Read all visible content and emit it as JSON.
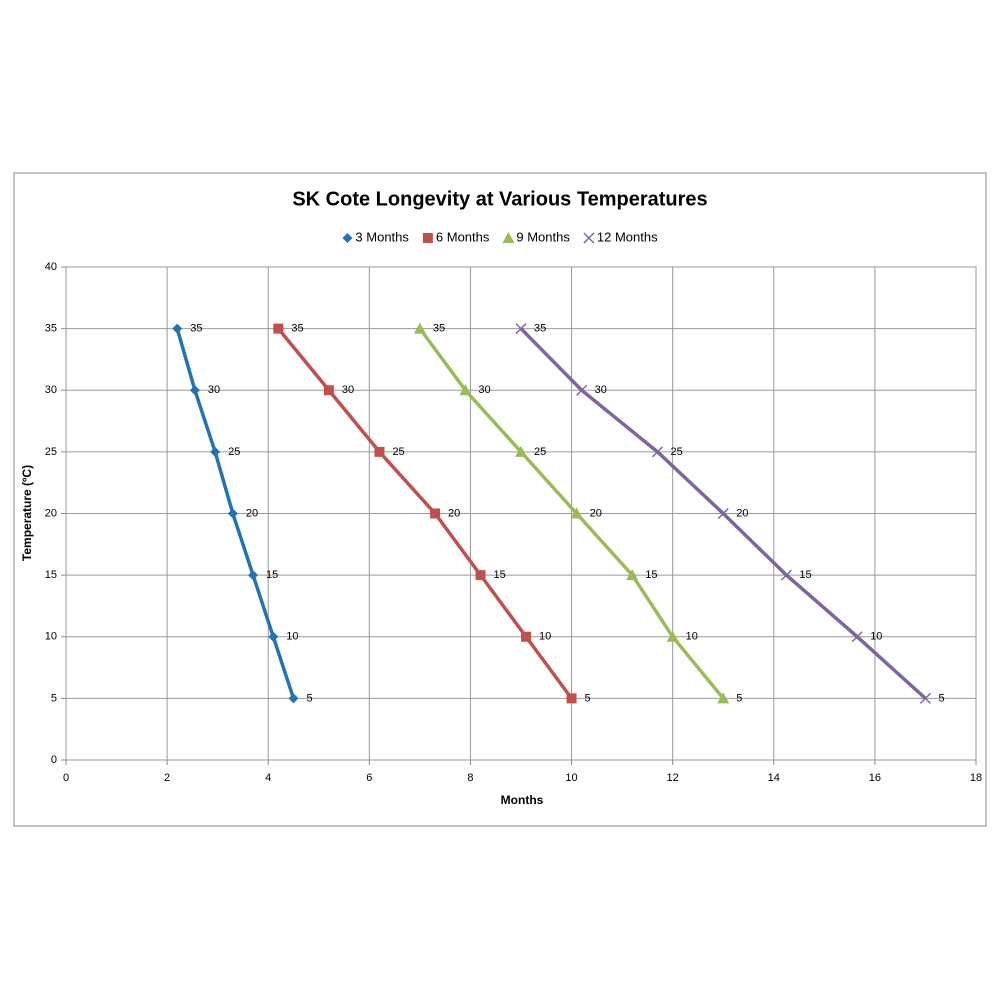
{
  "chart_data": {
    "type": "scatter",
    "title": "SK Cote Longevity at Various Temperatures",
    "x_label": "Months",
    "y_label": "Temperature (ºC)",
    "xlim": [
      0,
      18
    ],
    "xticks": [
      0,
      2,
      4,
      6,
      8,
      10,
      12,
      14,
      16,
      18
    ],
    "ylim": [
      0,
      40
    ],
    "yticks": [
      0,
      5,
      10,
      15,
      20,
      25,
      30,
      35,
      40
    ],
    "grid": true,
    "legend": "top",
    "series": [
      {
        "name": "3 Months",
        "color": "#2273b5",
        "marker": "diamond",
        "x": [
          2.2,
          2.55,
          2.95,
          3.3,
          3.7,
          4.1,
          4.5
        ],
        "values": [
          35,
          30,
          25,
          20,
          15,
          10,
          5
        ]
      },
      {
        "name": "6 Months",
        "color": "#c0504d",
        "marker": "square",
        "x": [
          4.2,
          5.2,
          6.2,
          7.3,
          8.2,
          9.1,
          10
        ],
        "values": [
          35,
          30,
          25,
          20,
          15,
          10,
          5
        ]
      },
      {
        "name": "9 Months",
        "color": "#9bbb59",
        "marker": "triangle",
        "x": [
          7,
          7.9,
          9,
          10.1,
          11.2,
          12,
          13
        ],
        "values": [
          35,
          30,
          25,
          20,
          15,
          10,
          5
        ]
      },
      {
        "name": "12 Months",
        "color": "#8064a2",
        "marker": "x",
        "x": [
          9,
          10.2,
          11.7,
          13,
          14.25,
          15.65,
          17
        ],
        "values": [
          35,
          30,
          25,
          20,
          15,
          10,
          5
        ]
      }
    ]
  }
}
